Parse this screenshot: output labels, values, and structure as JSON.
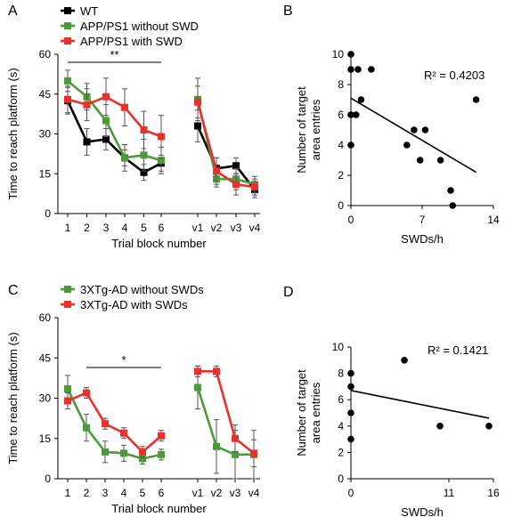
{
  "colors": {
    "wt": "#000000",
    "green": "#4e9a3a",
    "red": "#e8312b",
    "axis": "#000000"
  },
  "chart_data": [
    {
      "id": "A",
      "panel_label": "A",
      "type": "line",
      "xlabel": "Trial block number",
      "ylabel": "Time to reach platform (s)",
      "ylim": [
        0,
        60
      ],
      "yticks": [
        "0",
        "15",
        "30",
        "45",
        "60"
      ],
      "categories": [
        "1",
        "2",
        "3",
        "4",
        "5",
        "6",
        "v1",
        "v2",
        "v3",
        "v4"
      ],
      "legend_position": "top-left",
      "significance": "**",
      "significance_span": [
        "1",
        "6"
      ],
      "series": [
        {
          "name": "WT",
          "color_key": "wt",
          "values": [
            42.5,
            27,
            28,
            21,
            15.5,
            19,
            33,
            17,
            18,
            9
          ],
          "errors": [
            5,
            5,
            4,
            3,
            3,
            3,
            6,
            4,
            3,
            3
          ]
        },
        {
          "name": "APP/PS1 without SWD",
          "color_key": "green",
          "values": [
            50,
            44,
            35,
            21,
            22,
            20,
            43,
            13,
            13,
            11
          ],
          "errors": [
            4,
            5,
            6,
            5,
            6,
            5,
            8,
            3,
            4,
            3
          ]
        },
        {
          "name": "APP/PS1 with SWD",
          "color_key": "red",
          "values": [
            43,
            41,
            44,
            40,
            31.5,
            29,
            42,
            16,
            11,
            10
          ],
          "errors": [
            5,
            6,
            7,
            7,
            7,
            8,
            6,
            5,
            4,
            3
          ]
        }
      ]
    },
    {
      "id": "B",
      "panel_label": "B",
      "type": "scatter",
      "xlabel": "SWDs/h",
      "ylabel": "Number of target area entries",
      "xlim": [
        0,
        14
      ],
      "ylim": [
        0,
        10
      ],
      "xticks": [
        "0",
        "7",
        "14"
      ],
      "yticks": [
        "0",
        "2",
        "4",
        "6",
        "8",
        "10"
      ],
      "annotation": "R² = 0.4203",
      "points": [
        [
          0,
          10
        ],
        [
          0,
          9
        ],
        [
          0,
          6
        ],
        [
          0,
          4
        ],
        [
          0.5,
          6
        ],
        [
          0.7,
          9
        ],
        [
          1,
          7
        ],
        [
          2,
          9
        ],
        [
          5.5,
          4
        ],
        [
          6.2,
          5
        ],
        [
          6.8,
          3
        ],
        [
          7.3,
          5
        ],
        [
          8.8,
          3
        ],
        [
          9.8,
          1
        ],
        [
          10,
          0
        ],
        [
          12.3,
          7
        ]
      ],
      "trend": {
        "x": [
          0,
          12.3
        ],
        "y": [
          7.1,
          2.2
        ]
      }
    },
    {
      "id": "C",
      "panel_label": "C",
      "type": "line",
      "xlabel": "Trial block number",
      "ylabel": "Time to reach platform (s)",
      "ylim": [
        0,
        60
      ],
      "yticks": [
        "0",
        "15",
        "30",
        "45",
        "60"
      ],
      "categories": [
        "1",
        "2",
        "3",
        "4",
        "5",
        "6",
        "v1",
        "v2",
        "v3",
        "v4"
      ],
      "legend_position": "top-left",
      "significance": "*",
      "significance_span": [
        "2",
        "6"
      ],
      "series": [
        {
          "name": "3XTg-AD without SWDs",
          "color_key": "green",
          "values": [
            33.5,
            19,
            10,
            9.5,
            7.5,
            9,
            34,
            12,
            9,
            9
          ],
          "errors": [
            5,
            5,
            4,
            3,
            2,
            2,
            8,
            10,
            9,
            9
          ]
        },
        {
          "name": "3XTg-AD with SWDs",
          "color_key": "red",
          "values": [
            29,
            32,
            20.5,
            17,
            10,
            16,
            40,
            40,
            15,
            9.5
          ],
          "errors": [
            3,
            2,
            2,
            2,
            2,
            2,
            2,
            2,
            5,
            5
          ]
        }
      ]
    },
    {
      "id": "D",
      "panel_label": "D",
      "type": "scatter",
      "xlabel": "SWDs/h",
      "ylabel": "Number of target area entries",
      "xlim": [
        0,
        16
      ],
      "ylim": [
        0,
        10
      ],
      "xticks": [
        "0",
        "11",
        "16"
      ],
      "yticks": [
        "0",
        "2",
        "4",
        "6",
        "8",
        "10"
      ],
      "annotation": "R² = 0.1421",
      "points": [
        [
          0,
          8
        ],
        [
          0,
          7
        ],
        [
          0,
          5
        ],
        [
          0,
          3
        ],
        [
          6,
          9
        ],
        [
          10,
          4
        ],
        [
          15.5,
          4
        ]
      ],
      "trend": {
        "x": [
          0,
          15.5
        ],
        "y": [
          6.7,
          4.6
        ]
      }
    }
  ]
}
